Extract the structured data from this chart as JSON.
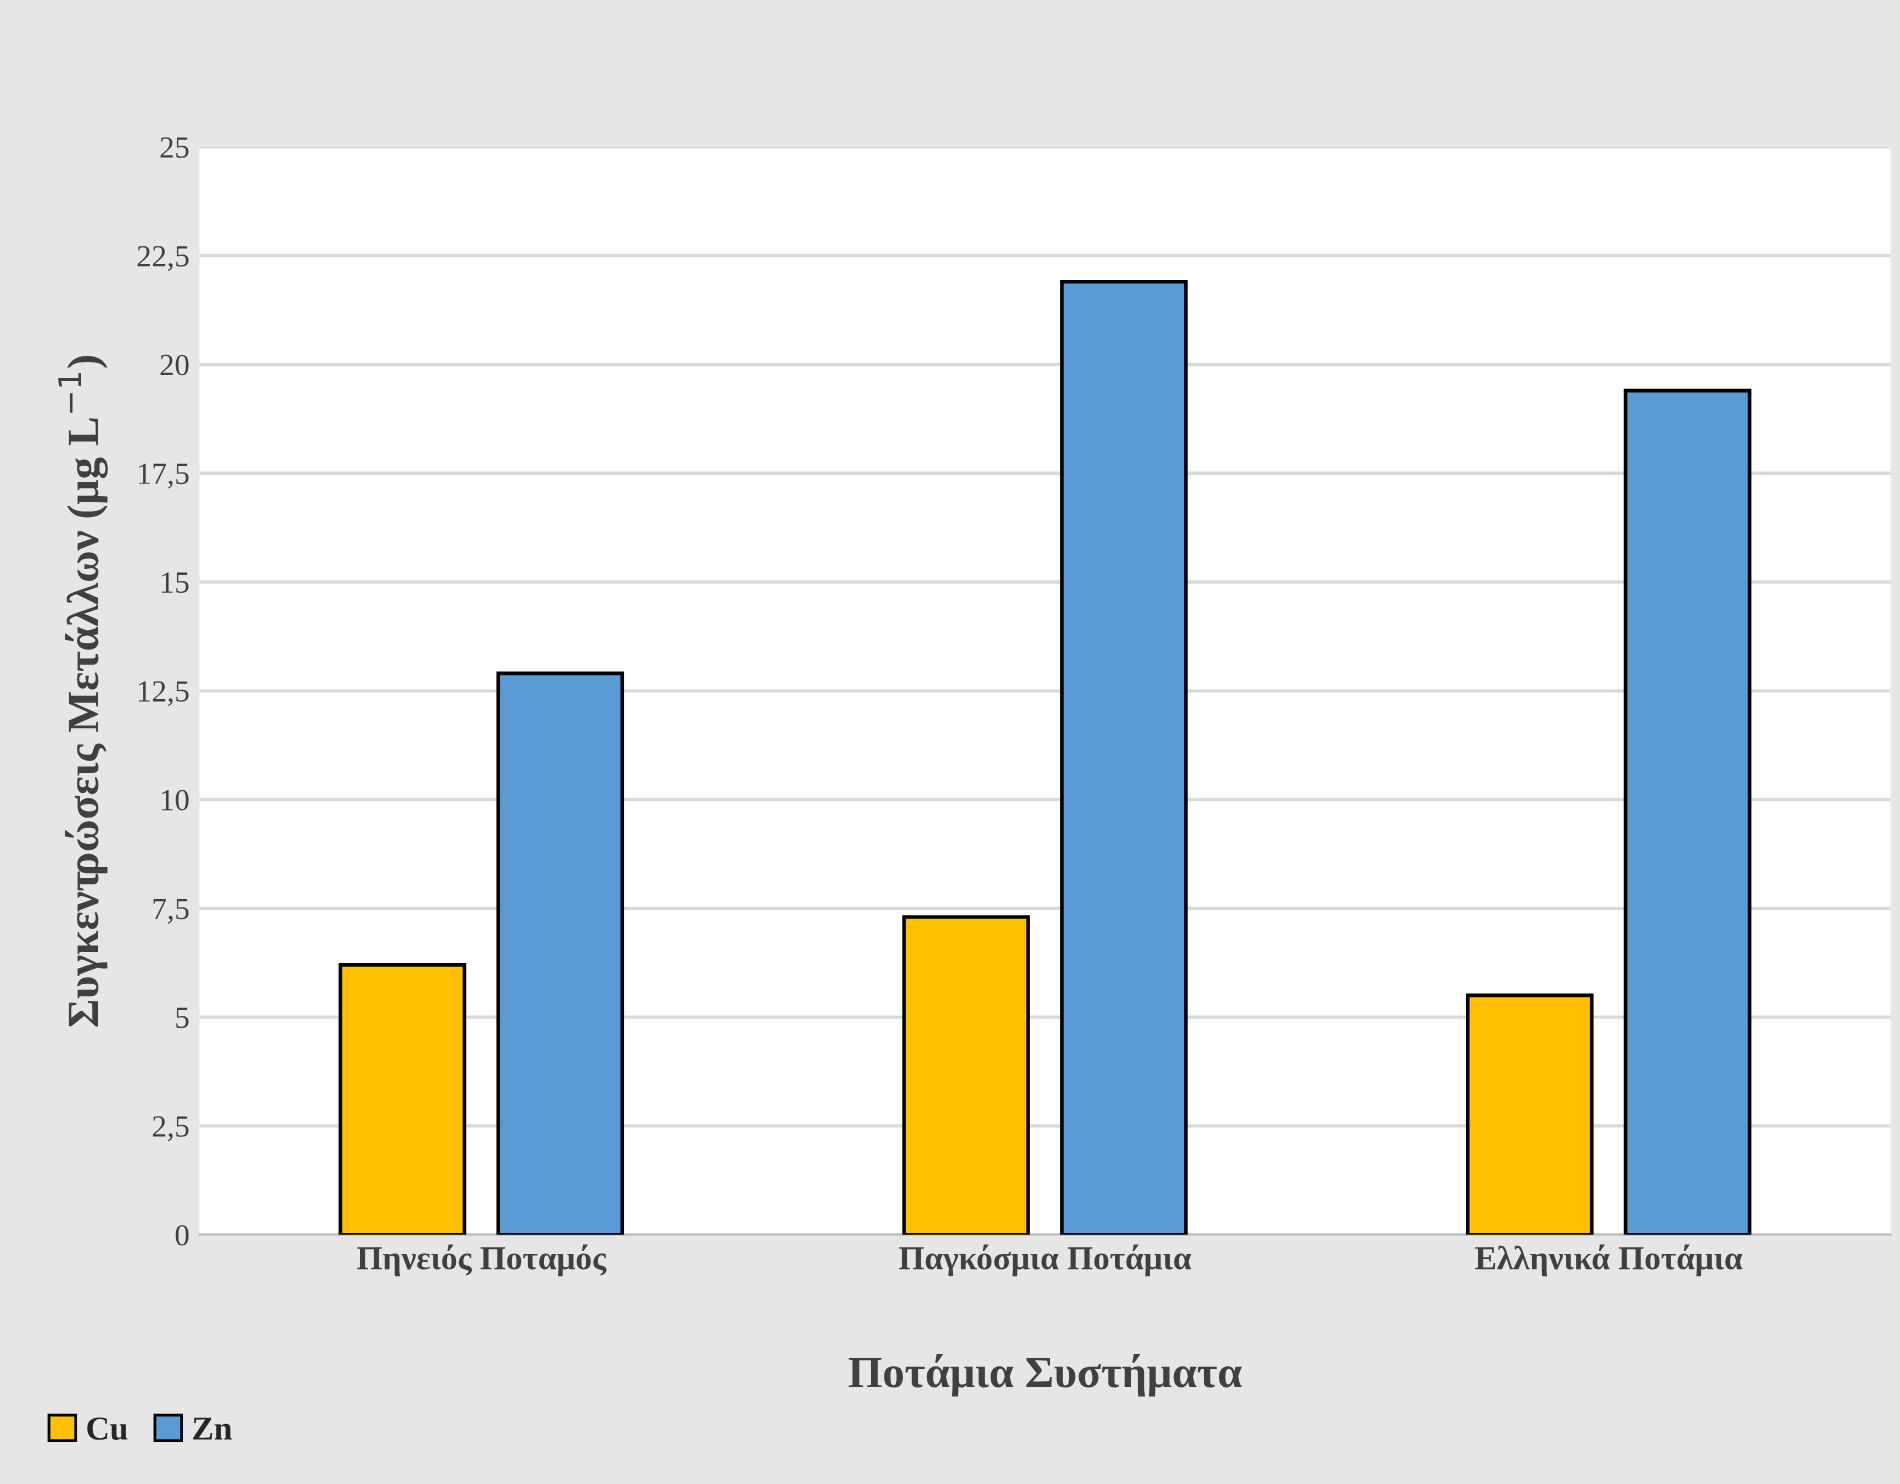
{
  "chart_data": {
    "type": "bar",
    "xlabel": "Ποτάμια Συστήματα",
    "ylabel": "Συγκεντρώσεις Μετάλλων (μg L$^{−1}$)",
    "categories": [
      "Πηνειός Ποταμός",
      "Παγκόσμια Ποτάμια",
      "Ελληνικά Ποτάμια"
    ],
    "series": [
      {
        "name": "Cu",
        "color": "#ffc000",
        "values": [
          6.2,
          7.3,
          5.5
        ]
      },
      {
        "name": "Zn",
        "color": "#5b9bd5",
        "values": [
          12.9,
          21.9,
          19.4
        ]
      }
    ],
    "ylim": [
      0,
      25
    ],
    "yticks": [
      0,
      {
        "value": 2.5,
        "label": "2,5"
      },
      5,
      {
        "value": 7.5,
        "label": "7,5"
      },
      10,
      {
        "value": 12.5,
        "label": "12,5"
      },
      15,
      {
        "value": 17.5,
        "label": "17,5"
      },
      20,
      {
        "value": 22.5,
        "label": "22,5"
      },
      25
    ],
    "grid": "y",
    "legend": "bottom left"
  }
}
